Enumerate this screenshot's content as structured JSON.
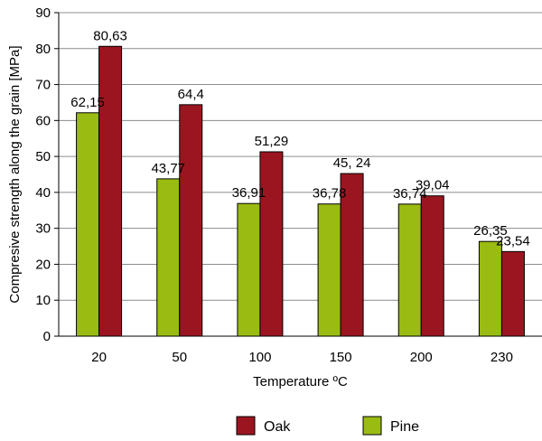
{
  "chart_data": {
    "type": "bar",
    "categories": [
      "20",
      "50",
      "100",
      "150",
      "200",
      "230"
    ],
    "series": [
      {
        "name": "Pine",
        "color": "#9abb11",
        "values": [
          62.15,
          43.77,
          36.91,
          36.78,
          36.74,
          26.35
        ],
        "labels": [
          "62,15",
          "43,77",
          "36,91",
          "36,78",
          "36,74",
          "26,35"
        ]
      },
      {
        "name": "Oak",
        "color": "#9b1520",
        "values": [
          80.63,
          64.4,
          51.29,
          45.24,
          39.04,
          23.54
        ],
        "labels": [
          "80,63",
          "64,4",
          "51,29",
          "45, 24",
          "39,04",
          "23,54"
        ]
      }
    ],
    "legend_order": [
      "Oak",
      "Pine"
    ],
    "xlabel": "Temperature ºC",
    "ylabel": "Compresive strength along the grain [MPa]",
    "ylim": [
      0,
      90
    ],
    "yticks": [
      0,
      10,
      20,
      30,
      40,
      50,
      60,
      70,
      80,
      90
    ],
    "grid": true,
    "legend_position": "bottom"
  }
}
